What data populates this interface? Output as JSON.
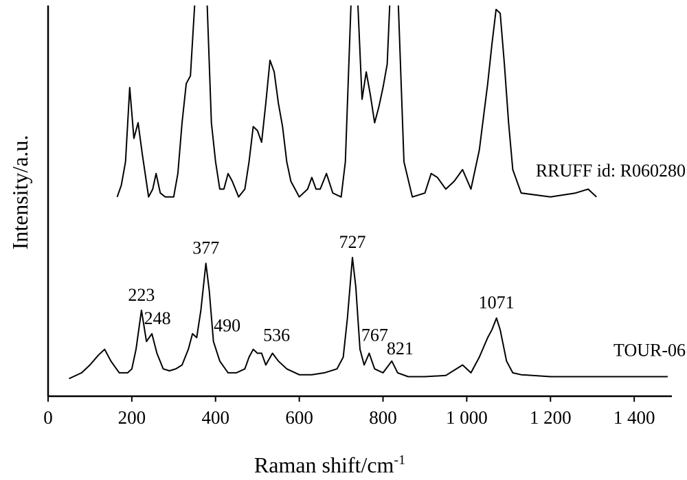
{
  "chart_data": {
    "type": "line",
    "xlabel": "Raman shift/cm",
    "xlabel_superscript": "-1",
    "ylabel": "Intensity/a.u.",
    "xlim": [
      0,
      1490
    ],
    "ylim": [
      0,
      100
    ],
    "xticks": [
      0,
      200,
      400,
      600,
      800,
      {
        "value": 1000,
        "label": "1 000"
      },
      {
        "value": 1200,
        "label": "1 200"
      },
      {
        "value": 1400,
        "label": "1 400"
      }
    ],
    "series": [
      {
        "name": "RRUFF id: R060280",
        "color": "#000000",
        "x": [
          165,
          175,
          185,
          195,
          205,
          215,
          225,
          240,
          250,
          258,
          268,
          280,
          300,
          310,
          320,
          330,
          340,
          350,
          360,
          370,
          380,
          390,
          400,
          410,
          420,
          430,
          440,
          455,
          470,
          480,
          490,
          500,
          510,
          520,
          530,
          540,
          550,
          560,
          570,
          580,
          600,
          620,
          630,
          640,
          650,
          665,
          680,
          700,
          710,
          720,
          730,
          740,
          750,
          760,
          770,
          780,
          790,
          800,
          810,
          820,
          830,
          840,
          850,
          870,
          900,
          915,
          930,
          950,
          970,
          990,
          1010,
          1030,
          1050,
          1060,
          1070,
          1080,
          1090,
          1100,
          1110,
          1130,
          1200,
          1260,
          1290,
          1310
        ],
        "values": [
          51,
          54,
          60,
          79,
          66,
          70,
          62,
          51,
          53,
          57,
          52,
          51,
          51,
          57,
          70,
          80,
          82,
          100,
          130,
          125,
          100,
          70,
          60,
          53,
          53,
          57,
          55,
          51,
          53,
          60,
          69,
          68,
          65,
          75,
          86,
          83,
          75,
          69,
          60,
          55,
          51,
          53,
          56,
          53,
          53,
          57,
          52,
          51,
          60,
          90,
          120,
          100,
          76,
          83,
          77,
          70,
          74,
          79,
          85,
          110,
          120,
          90,
          60,
          51,
          52,
          57,
          56,
          53,
          55,
          58,
          53,
          63,
          80,
          90,
          99,
          98,
          85,
          70,
          58,
          52,
          51,
          52,
          53,
          51
        ]
      },
      {
        "name": "TOUR-06",
        "color": "#000000",
        "x": [
          50,
          80,
          100,
          120,
          135,
          150,
          170,
          190,
          200,
          210,
          223,
          235,
          248,
          260,
          275,
          290,
          305,
          320,
          335,
          345,
          355,
          365,
          377,
          385,
          395,
          410,
          430,
          450,
          470,
          480,
          490,
          500,
          510,
          520,
          536,
          550,
          570,
          600,
          630,
          660,
          690,
          705,
          715,
          727,
          735,
          745,
          755,
          767,
          780,
          800,
          821,
          835,
          860,
          900,
          950,
          990,
          1010,
          1030,
          1050,
          1060,
          1071,
          1080,
          1095,
          1110,
          1130,
          1200,
          1300,
          1400,
          1480
        ],
        "values": [
          4.5,
          6,
          8,
          10.5,
          12,
          9,
          6,
          6,
          7,
          12,
          22,
          14,
          16,
          11,
          7,
          6.5,
          7,
          8,
          12,
          16,
          15,
          22,
          34,
          27,
          14,
          9,
          6,
          6,
          7,
          10,
          12,
          11,
          11,
          8,
          11,
          9,
          7,
          5.5,
          5.5,
          6,
          7,
          10,
          20,
          35.5,
          28,
          12,
          8,
          11,
          7,
          6,
          9,
          6,
          5,
          5,
          5.3,
          8,
          6,
          10,
          15,
          17,
          20,
          17,
          9,
          6,
          5.5,
          5,
          5,
          5,
          5
        ]
      }
    ],
    "annotations": [
      {
        "text": "223",
        "x": 223
      },
      {
        "text": "248",
        "x": 248
      },
      {
        "text": "377",
        "x": 377
      },
      {
        "text": "490",
        "x": 490
      },
      {
        "text": "536",
        "x": 536
      },
      {
        "text": "727",
        "x": 727
      },
      {
        "text": "767",
        "x": 767
      },
      {
        "text": "821",
        "x": 821
      },
      {
        "text": "1071",
        "x": 1071
      }
    ]
  }
}
